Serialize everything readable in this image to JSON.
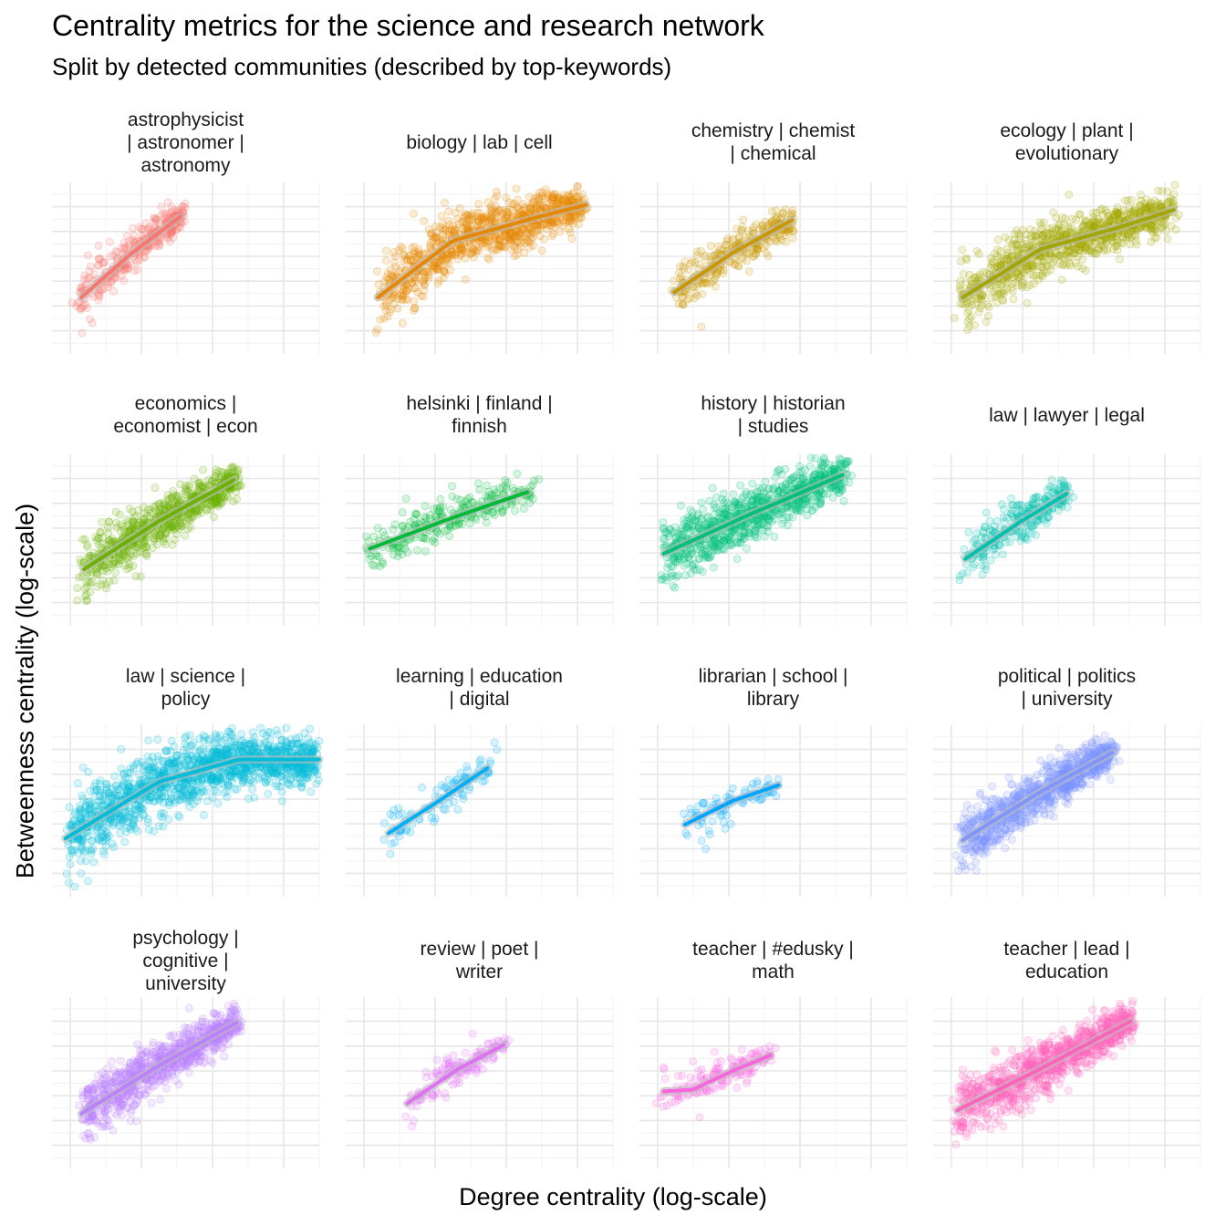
{
  "chart_data": {
    "type": "scatter",
    "title": "Centrality metrics for the science and research network",
    "subtitle": "Split by detected communities (described by top-keywords)",
    "xlabel": "Degree centrality (log-scale)",
    "ylabel": "Betweenness centrality (log-scale)",
    "grid": true,
    "axis_ticks_labels": "none",
    "trend": "smoothed fit per panel",
    "x_range": [
      0.0,
      1.0
    ],
    "y_range": [
      0.0,
      1.0
    ],
    "panels": [
      {
        "label": [
          "astrophysicist",
          "| astronomer |",
          "astronomy"
        ],
        "color": "#F8766D",
        "x_range": [
          0.1,
          0.5
        ],
        "fit": [
          [
            0.11,
            0.33
          ],
          [
            0.3,
            0.59
          ],
          [
            0.48,
            0.8
          ]
        ],
        "spread": 0.07,
        "n": 320
      },
      {
        "label": [
          "biology | lab | cell"
        ],
        "color": "#E58700",
        "x_range": [
          0.12,
          0.9
        ],
        "fit": [
          [
            0.12,
            0.33
          ],
          [
            0.4,
            0.66
          ],
          [
            0.7,
            0.79
          ],
          [
            0.9,
            0.87
          ]
        ],
        "spread": 0.09,
        "n": 900
      },
      {
        "label": [
          "chemistry | chemist",
          "| chemical"
        ],
        "color": "#C99800",
        "x_range": [
          0.13,
          0.58
        ],
        "fit": [
          [
            0.13,
            0.36
          ],
          [
            0.35,
            0.59
          ],
          [
            0.57,
            0.78
          ]
        ],
        "spread": 0.07,
        "n": 300
      },
      {
        "label": [
          "ecology | plant |",
          "evolutionary"
        ],
        "color": "#A3A500",
        "x_range": [
          0.1,
          0.9
        ],
        "fit": [
          [
            0.11,
            0.33
          ],
          [
            0.4,
            0.61
          ],
          [
            0.7,
            0.74
          ],
          [
            0.9,
            0.84
          ]
        ],
        "spread": 0.09,
        "n": 900
      },
      {
        "label": [
          "economics |",
          "economist | econ"
        ],
        "color": "#6BB100",
        "x_range": [
          0.1,
          0.7
        ],
        "fit": [
          [
            0.12,
            0.33
          ],
          [
            0.4,
            0.61
          ],
          [
            0.68,
            0.85
          ]
        ],
        "spread": 0.08,
        "n": 700
      },
      {
        "label": [
          "helsinki | finland |",
          "finnish"
        ],
        "color": "#00BA38",
        "x_range": [
          0.08,
          0.7
        ],
        "fit": [
          [
            0.09,
            0.45
          ],
          [
            0.4,
            0.63
          ],
          [
            0.68,
            0.78
          ]
        ],
        "spread": 0.07,
        "n": 260
      },
      {
        "label": [
          "history | historian",
          "| studies"
        ],
        "color": "#00BF7D",
        "x_range": [
          0.08,
          0.78
        ],
        "fit": [
          [
            0.09,
            0.42
          ],
          [
            0.4,
            0.64
          ],
          [
            0.76,
            0.88
          ]
        ],
        "spread": 0.09,
        "n": 900
      },
      {
        "label": [
          "law | lawyer | legal"
        ],
        "color": "#00C0AF",
        "x_range": [
          0.11,
          0.52
        ],
        "fit": [
          [
            0.12,
            0.39
          ],
          [
            0.32,
            0.6
          ],
          [
            0.5,
            0.77
          ]
        ],
        "spread": 0.07,
        "n": 260
      },
      {
        "label": [
          "law | science |",
          "policy"
        ],
        "color": "#00BCD8",
        "x_range": [
          0.05,
          1.0
        ],
        "fit": [
          [
            0.05,
            0.34
          ],
          [
            0.4,
            0.67
          ],
          [
            0.7,
            0.8
          ],
          [
            1.0,
            0.8
          ]
        ],
        "spread": 0.11,
        "n": 1400
      },
      {
        "label": [
          "learning | education",
          "| digital"
        ],
        "color": "#00B0F6",
        "x_range": [
          0.15,
          0.55
        ],
        "fit": [
          [
            0.16,
            0.37
          ],
          [
            0.35,
            0.56
          ],
          [
            0.53,
            0.75
          ]
        ],
        "spread": 0.06,
        "n": 110
      },
      {
        "label": [
          "librarian | school |",
          "library"
        ],
        "color": "#00A5FF",
        "x_range": [
          0.17,
          0.52
        ],
        "fit": [
          [
            0.17,
            0.42
          ],
          [
            0.35,
            0.56
          ],
          [
            0.52,
            0.65
          ]
        ],
        "spread": 0.06,
        "n": 90
      },
      {
        "label": [
          "political | politics",
          "| university"
        ],
        "color": "#7F96FF",
        "x_range": [
          0.1,
          0.68
        ],
        "fit": [
          [
            0.11,
            0.33
          ],
          [
            0.4,
            0.61
          ],
          [
            0.67,
            0.84
          ]
        ],
        "spread": 0.08,
        "n": 900
      },
      {
        "label": [
          "psychology |",
          "cognitive |",
          "university"
        ],
        "color": "#BC81FF",
        "x_range": [
          0.11,
          0.7
        ],
        "fit": [
          [
            0.11,
            0.32
          ],
          [
            0.4,
            0.6
          ],
          [
            0.69,
            0.85
          ]
        ],
        "spread": 0.08,
        "n": 900
      },
      {
        "label": [
          "review | poet |",
          "writer"
        ],
        "color": "#E26EF7",
        "x_range": [
          0.22,
          0.6
        ],
        "fit": [
          [
            0.23,
            0.38
          ],
          [
            0.42,
            0.58
          ],
          [
            0.59,
            0.72
          ]
        ],
        "spread": 0.06,
        "n": 130
      },
      {
        "label": [
          "teacher | #edusky |",
          "math"
        ],
        "color": "#F863DF",
        "x_range": [
          0.08,
          0.5
        ],
        "fit": [
          [
            0.09,
            0.45
          ],
          [
            0.2,
            0.46
          ],
          [
            0.35,
            0.57
          ],
          [
            0.49,
            0.66
          ]
        ],
        "spread": 0.06,
        "n": 140
      },
      {
        "label": [
          "teacher | lead |",
          "education"
        ],
        "color": "#FF62BC",
        "x_range": [
          0.08,
          0.75
        ],
        "fit": [
          [
            0.09,
            0.34
          ],
          [
            0.4,
            0.58
          ],
          [
            0.74,
            0.86
          ]
        ],
        "spread": 0.09,
        "n": 900
      }
    ]
  }
}
